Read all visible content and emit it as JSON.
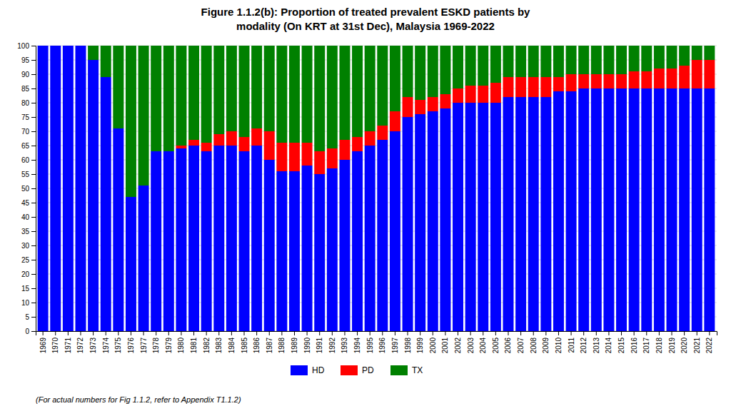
{
  "chart_data": {
    "type": "bar",
    "title": "Figure 1.1.2(b): Proportion of treated prevalent ESKD patients by",
    "subtitle": "modality (On KRT at 31st Dec), Malaysia 1969-2022",
    "annotations": [
      "(For actual numbers for Fig 1.1.2, refer to Appendix T1.1.2)"
    ],
    "categories": [
      "1969",
      "1970",
      "1971",
      "1972",
      "1973",
      "1974",
      "1975",
      "1976",
      "1977",
      "1978",
      "1979",
      "1980",
      "1981",
      "1982",
      "1983",
      "1984",
      "1985",
      "1986",
      "1987",
      "1988",
      "1989",
      "1990",
      "1991",
      "1992",
      "1993",
      "1994",
      "1995",
      "1996",
      "1997",
      "1998",
      "1999",
      "2000",
      "2001",
      "2002",
      "2003",
      "2004",
      "2005",
      "2006",
      "2007",
      "2008",
      "2009",
      "2010",
      "2011",
      "2012",
      "2013",
      "2014",
      "2015",
      "2016",
      "2017",
      "2018",
      "2019",
      "2020",
      "2021",
      "2022"
    ],
    "series": [
      {
        "name": "HD",
        "color": "#0000FF",
        "values": [
          100,
          100,
          100,
          100,
          95,
          89,
          71,
          47,
          51,
          63,
          63,
          64,
          65,
          63,
          65,
          65,
          63,
          65,
          60,
          56,
          56,
          58,
          55,
          57,
          60,
          63,
          65,
          67,
          70,
          75,
          76,
          77,
          78,
          80,
          80,
          80,
          80,
          82,
          82,
          82,
          82,
          84,
          84,
          85,
          85,
          85,
          85,
          85,
          85,
          85,
          85,
          85,
          85,
          85
        ]
      },
      {
        "name": "PD",
        "color": "#FF0000",
        "values": [
          0,
          0,
          0,
          0,
          0,
          0,
          0,
          0,
          0,
          0,
          0,
          1,
          2,
          3,
          4,
          5,
          5,
          6,
          10,
          10,
          10,
          8,
          8,
          7,
          7,
          5,
          5,
          5,
          7,
          7,
          5,
          5,
          5,
          5,
          6,
          6,
          7,
          7,
          7,
          7,
          7,
          5,
          6,
          5,
          5,
          5,
          5,
          6,
          6,
          7,
          7,
          8,
          10,
          10
        ]
      },
      {
        "name": "TX",
        "color": "#008000",
        "values": [
          0,
          0,
          0,
          0,
          5,
          11,
          29,
          53,
          49,
          37,
          37,
          35,
          33,
          34,
          31,
          30,
          32,
          29,
          30,
          34,
          34,
          34,
          37,
          36,
          33,
          32,
          30,
          28,
          23,
          18,
          19,
          18,
          17,
          15,
          14,
          14,
          13,
          11,
          11,
          11,
          11,
          11,
          10,
          10,
          10,
          10,
          10,
          9,
          9,
          8,
          8,
          7,
          5,
          5
        ]
      }
    ],
    "stacked": true,
    "ylim": [
      0,
      100
    ],
    "yticks": [
      0,
      5,
      10,
      15,
      20,
      25,
      30,
      35,
      40,
      45,
      50,
      55,
      60,
      65,
      70,
      75,
      80,
      85,
      90,
      95,
      100
    ],
    "grid": true,
    "legend": "bottom"
  }
}
